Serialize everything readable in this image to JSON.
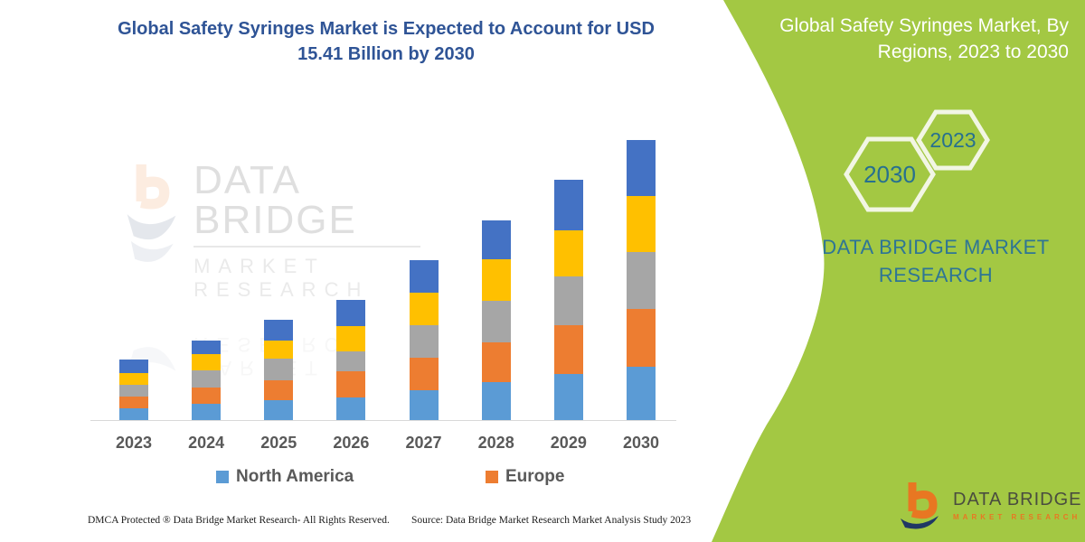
{
  "main": {
    "title_lines": [
      "Global Safety Syringes Market is Expected to Account for USD",
      "15.41 Billion by 2030"
    ]
  },
  "watermark": {
    "brand": "DATA BRIDGE",
    "sub": "MARKET RESEARCH"
  },
  "footer": {
    "left": "DMCA Protected ® Data Bridge Market Research-  All Rights Reserved.",
    "source": "Source: Data Bridge Market Research  Market Analysis Study 2023"
  },
  "side_panel": {
    "title_lines": [
      "Global Safety Syringes Market, By",
      "Regions, 2023 to 2030"
    ],
    "hexagon_large_label": "2030",
    "hexagon_small_label": "2023",
    "brand_lines": [
      "DATA BRIDGE MARKET",
      "RESEARCH"
    ],
    "logo_brand": "DATA BRIDGE",
    "logo_sub": "MARKET RESEARCH",
    "colors": {
      "background": "#A3C843",
      "heading_text": "#FFFFFF",
      "brand_text": "#2E7595",
      "hexagon_border": "#F2F6E4"
    }
  },
  "chart_data": {
    "type": "bar",
    "stacked": true,
    "title": "Global Safety Syringes Market, By Regions, 2023 to 2030",
    "unit": "USD Billion",
    "categories": [
      "2023",
      "2024",
      "2025",
      "2026",
      "2027",
      "2028",
      "2029",
      "2030"
    ],
    "series": [
      {
        "name": "North America",
        "color": "#5B9BD5",
        "values": [
          0.65,
          0.89,
          1.08,
          1.25,
          1.66,
          2.08,
          2.52,
          2.94
        ]
      },
      {
        "name": "Europe",
        "color": "#ED7D31",
        "values": [
          0.65,
          0.91,
          1.13,
          1.42,
          1.78,
          2.21,
          2.7,
          3.15
        ]
      },
      {
        "name": "",
        "color": "#A6A6A6",
        "values": [
          0.65,
          0.94,
          1.16,
          1.12,
          1.79,
          2.28,
          2.7,
          3.17
        ]
      },
      {
        "name": "",
        "color": "#FFC000",
        "values": [
          0.65,
          0.91,
          1.0,
          1.37,
          1.79,
          2.29,
          2.52,
          3.05
        ]
      },
      {
        "name": "",
        "color": "#4472C4",
        "values": [
          0.73,
          0.72,
          1.16,
          1.44,
          1.78,
          2.11,
          2.79,
          3.1
        ]
      }
    ],
    "totals": [
      3.33,
      4.37,
      5.53,
      6.6,
      8.8,
      10.97,
      13.23,
      15.41
    ],
    "final_year_total": 15.41,
    "legend": [
      {
        "label": "North America",
        "color": "#5B9BD5"
      },
      {
        "label": "Europe",
        "color": "#ED7D31"
      }
    ],
    "legend_position": "bottom",
    "gridlines": false,
    "y_axis_visible": false,
    "ylim": [
      0,
      16
    ]
  }
}
